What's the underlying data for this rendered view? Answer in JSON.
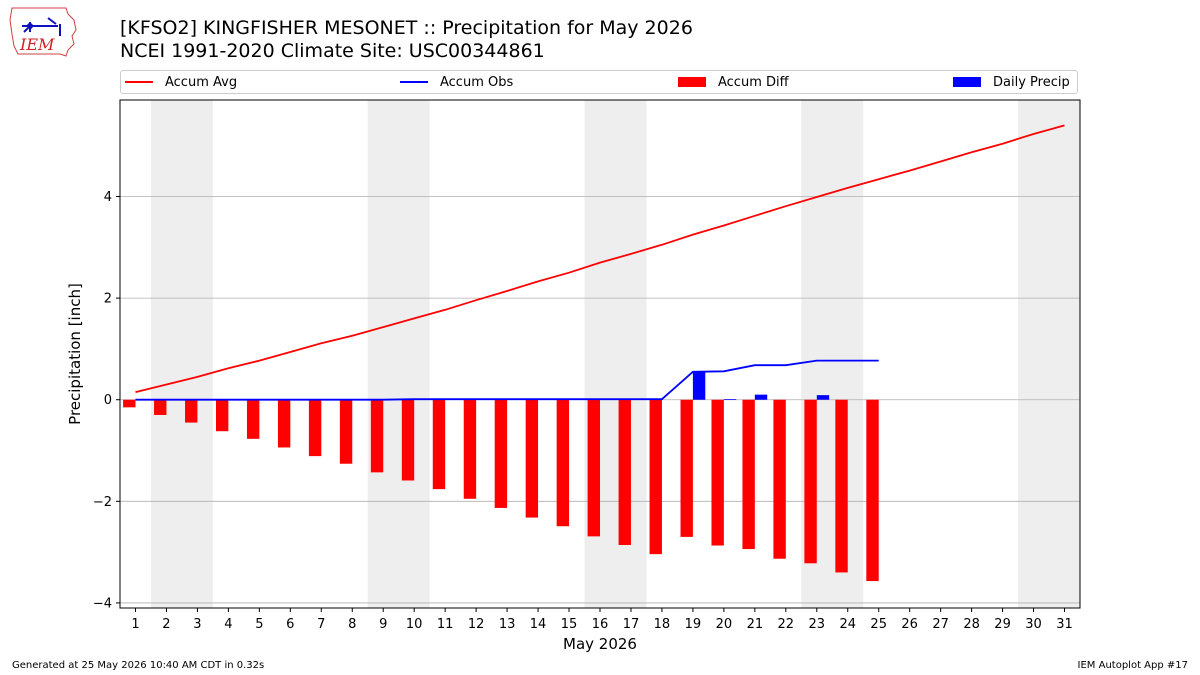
{
  "header": {
    "logo_text": "IEM",
    "title_line1": "[KFSO2] KINGFISHER MESONET :: Precipitation for May 2026",
    "title_line2": "NCEI 1991-2020 Climate Site: USC00344861"
  },
  "legend": {
    "position": "top",
    "items": [
      {
        "label": "Accum Avg",
        "kind": "line",
        "color": "#ff0000"
      },
      {
        "label": "Accum Obs",
        "kind": "line",
        "color": "#0000ff"
      },
      {
        "label": "Accum Diff",
        "kind": "bar",
        "color": "#ff0000"
      },
      {
        "label": "Daily Precip",
        "kind": "bar",
        "color": "#0000ff"
      }
    ]
  },
  "footer": {
    "left": "Generated at 25 May 2026 10:40 AM CDT in 0.32s",
    "right": "IEM Autoplot App #17"
  },
  "chart_data": {
    "type": "bar",
    "title": "[KFSO2] KINGFISHER MESONET :: Precipitation for May 2026",
    "subtitle": "NCEI 1991-2020 Climate Site: USC00344861",
    "xlabel": "May 2026",
    "ylabel": "Precipitation [inch]",
    "xlim": [
      0.5,
      31.5
    ],
    "ylim": [
      -4.1,
      5.9
    ],
    "yticks": [
      -4,
      -2,
      0,
      2,
      4
    ],
    "ytick_labels": [
      "−4",
      "−2",
      "0",
      "2",
      "4"
    ],
    "x": [
      1,
      2,
      3,
      4,
      5,
      6,
      7,
      8,
      9,
      10,
      11,
      12,
      13,
      14,
      15,
      16,
      17,
      18,
      19,
      20,
      21,
      22,
      23,
      24,
      25,
      26,
      27,
      28,
      29,
      30,
      31
    ],
    "grid": "horizontal",
    "weekend_shading": [
      [
        1.5,
        3.5
      ],
      [
        8.5,
        10.5
      ],
      [
        15.5,
        17.5
      ],
      [
        22.5,
        24.5
      ],
      [
        29.5,
        31.5
      ]
    ],
    "series": [
      {
        "name": "Accum Avg",
        "type": "line",
        "color": "#ff0000",
        "x": [
          1,
          2,
          3,
          4,
          5,
          6,
          7,
          8,
          9,
          10,
          11,
          12,
          13,
          14,
          15,
          16,
          17,
          18,
          19,
          20,
          21,
          22,
          23,
          24,
          25,
          26,
          27,
          28,
          29,
          30,
          31
        ],
        "values": [
          0.15,
          0.3,
          0.45,
          0.62,
          0.77,
          0.94,
          1.11,
          1.26,
          1.43,
          1.6,
          1.77,
          1.96,
          2.14,
          2.33,
          2.5,
          2.7,
          2.87,
          3.05,
          3.25,
          3.43,
          3.62,
          3.81,
          3.99,
          4.17,
          4.34,
          4.51,
          4.69,
          4.87,
          5.04,
          5.23,
          5.4
        ]
      },
      {
        "name": "Accum Obs",
        "type": "line",
        "color": "#0000ff",
        "x": [
          1,
          2,
          3,
          4,
          5,
          6,
          7,
          8,
          9,
          10,
          11,
          12,
          13,
          14,
          15,
          16,
          17,
          18,
          19,
          20,
          21,
          22,
          23,
          24,
          25
        ],
        "values": [
          0,
          0,
          0,
          0,
          0,
          0,
          0,
          0,
          0,
          0.01,
          0.01,
          0.01,
          0.01,
          0.01,
          0.01,
          0.01,
          0.01,
          0.01,
          0.55,
          0.56,
          0.68,
          0.68,
          0.77,
          0.77,
          0.77
        ]
      },
      {
        "name": "Accum Diff",
        "type": "bar",
        "color": "#ff0000",
        "offset": -0.2,
        "x": [
          1,
          2,
          3,
          4,
          5,
          6,
          7,
          8,
          9,
          10,
          11,
          12,
          13,
          14,
          15,
          16,
          17,
          18,
          19,
          20,
          21,
          22,
          23,
          24,
          25
        ],
        "values": [
          -0.15,
          -0.3,
          -0.45,
          -0.62,
          -0.77,
          -0.94,
          -1.11,
          -1.26,
          -1.43,
          -1.59,
          -1.76,
          -1.95,
          -2.13,
          -2.32,
          -2.49,
          -2.69,
          -2.86,
          -3.04,
          -2.7,
          -2.87,
          -2.94,
          -3.13,
          -3.22,
          -3.4,
          -3.57
        ]
      },
      {
        "name": "Daily Precip",
        "type": "bar",
        "color": "#0000ff",
        "offset": 0.2,
        "x": [
          1,
          2,
          3,
          4,
          5,
          6,
          7,
          8,
          9,
          10,
          11,
          12,
          13,
          14,
          15,
          16,
          17,
          18,
          19,
          20,
          21,
          22,
          23,
          24,
          25
        ],
        "values": [
          0,
          0,
          0,
          0,
          0,
          0,
          0,
          0,
          0,
          0.01,
          0,
          0,
          0,
          0,
          0,
          0,
          0,
          0,
          0.54,
          0.01,
          0.1,
          0,
          0.09,
          0,
          0
        ]
      }
    ]
  }
}
